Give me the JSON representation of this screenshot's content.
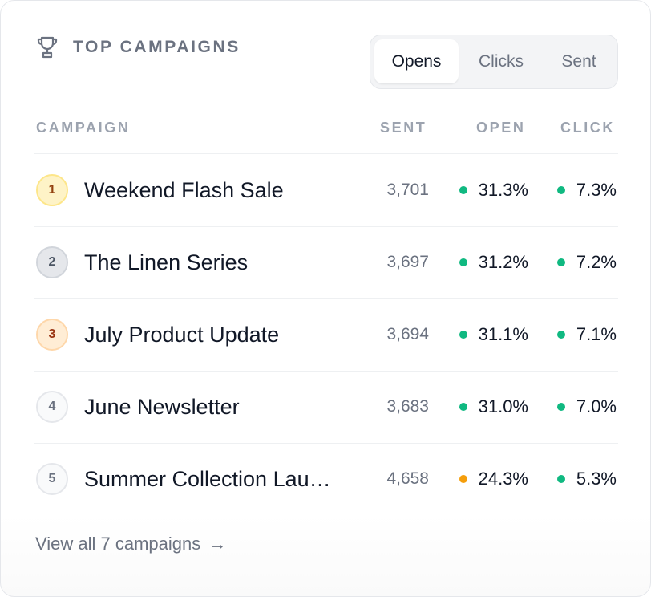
{
  "header": {
    "title": "TOP CAMPAIGNS",
    "icon": "trophy-icon"
  },
  "tabs": [
    {
      "label": "Opens",
      "active": true
    },
    {
      "label": "Clicks",
      "active": false
    },
    {
      "label": "Sent",
      "active": false
    }
  ],
  "columns": {
    "campaign": "CAMPAIGN",
    "sent": "SENT",
    "open": "OPEN",
    "click": "CLICK"
  },
  "status_colors": {
    "good": "#10b981",
    "warn": "#f59e0b"
  },
  "rows": [
    {
      "rank": "1",
      "name": "Weekend Flash Sale",
      "sent": "3,701",
      "open": "31.3%",
      "click": "7.3%",
      "open_status": "good",
      "click_status": "good"
    },
    {
      "rank": "2",
      "name": "The Linen Series",
      "sent": "3,697",
      "open": "31.2%",
      "click": "7.2%",
      "open_status": "good",
      "click_status": "good"
    },
    {
      "rank": "3",
      "name": "July Product Update",
      "sent": "3,694",
      "open": "31.1%",
      "click": "7.1%",
      "open_status": "good",
      "click_status": "good"
    },
    {
      "rank": "4",
      "name": "June Newsletter",
      "sent": "3,683",
      "open": "31.0%",
      "click": "7.0%",
      "open_status": "good",
      "click_status": "good"
    },
    {
      "rank": "5",
      "name": "Summer Collection Lau…",
      "sent": "4,658",
      "open": "24.3%",
      "click": "5.3%",
      "open_status": "warn",
      "click_status": "good"
    }
  ],
  "footer": {
    "link_label": "View all 7 campaigns",
    "arrow": "→"
  }
}
